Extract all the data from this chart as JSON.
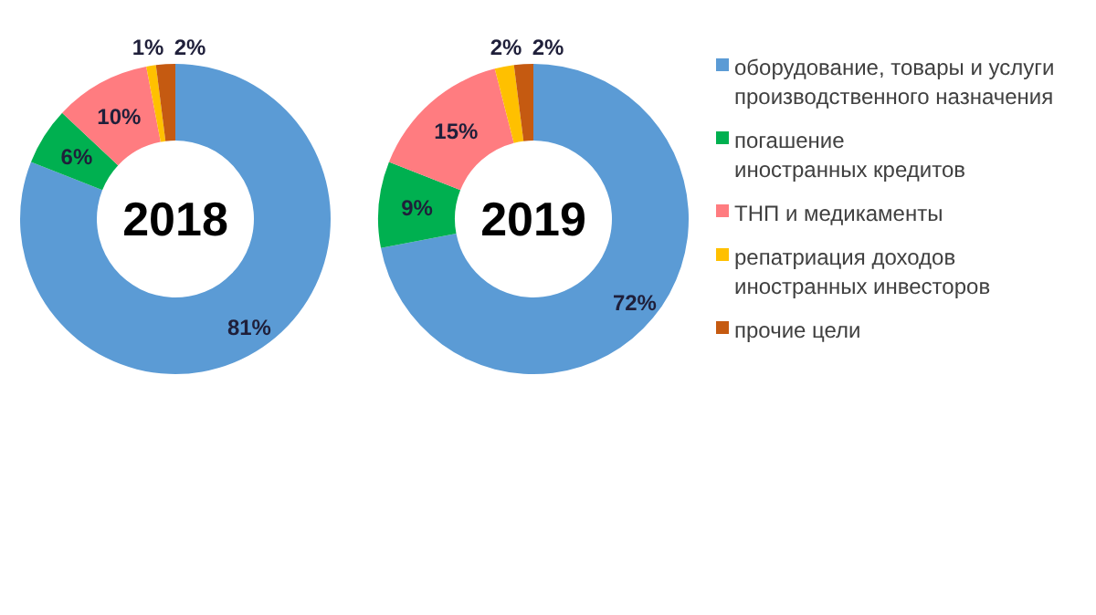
{
  "chart_data": [
    {
      "type": "donut",
      "title": "2018",
      "categories": [
        "оборудование, товары и услуги\nпроизводственного назначения",
        "погашение\nиностранных кредитов",
        "ТНП и медикаменты",
        "репатриация доходов\nиностранных инвесторов",
        "прочие цели"
      ],
      "values": [
        81,
        6,
        10,
        1,
        2
      ],
      "value_labels": [
        "81%",
        "6%",
        "10%",
        "1%",
        "2%"
      ],
      "colors": [
        "#5b9bd5",
        "#00b050",
        "#ff7c80",
        "#ffc000",
        "#c55a11"
      ],
      "legend": "right"
    },
    {
      "type": "donut",
      "title": "2019",
      "categories": [
        null,
        null,
        null,
        null,
        null
      ],
      "values": [
        72,
        9,
        15,
        2,
        2
      ],
      "value_labels": [
        "72%",
        "9%",
        "15%",
        "2%",
        "2%"
      ],
      "colors": [
        "#5b9bd5",
        "#00b050",
        "#ff7c80",
        "#ffc000",
        "#c55a11"
      ],
      "legend": false
    }
  ]
}
